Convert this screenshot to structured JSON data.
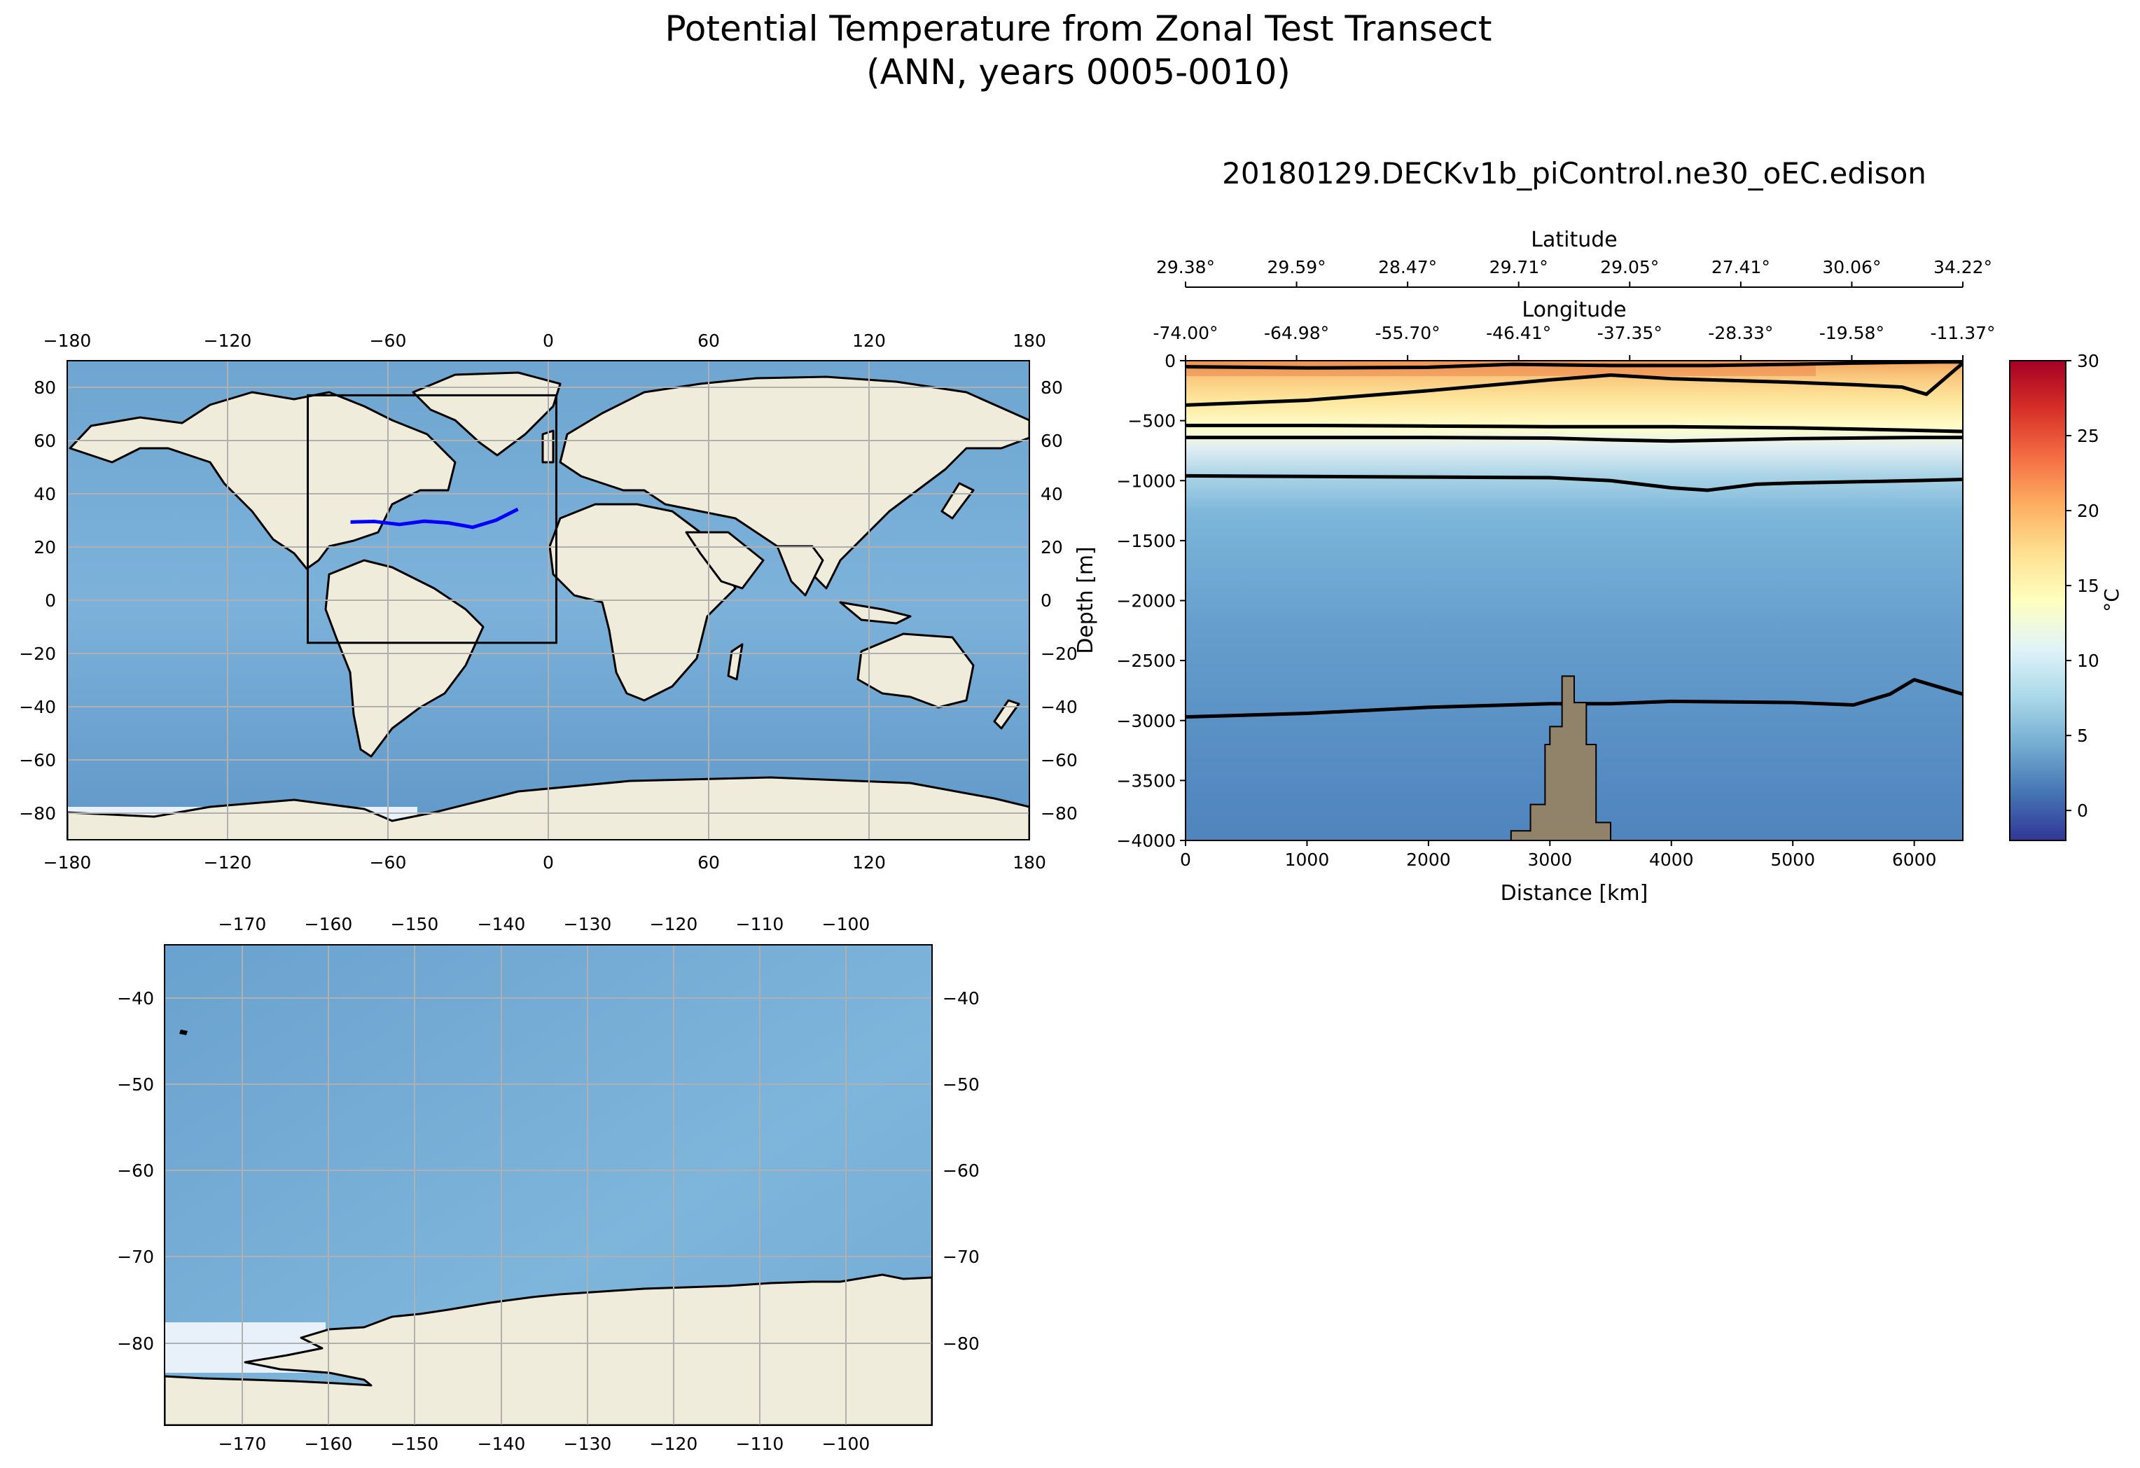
{
  "figure": {
    "title_line1": "Potential Temperature from Zonal Test Transect",
    "title_line2": "(ANN, years 0005-0010)",
    "colors": {
      "land": "#efecdc",
      "ocean_light": "#7fb2d8",
      "ocean_deep": "#4e86bd",
      "ice": "#e8f0fa",
      "grid": "#b0b0b0",
      "transect": "#0000ff",
      "bathymetry": "#91826a"
    }
  },
  "world_map": {
    "type": "map",
    "x_ticks": [
      "−180",
      "−120",
      "−60",
      "0",
      "60",
      "120",
      "180"
    ],
    "y_ticks": [
      "80",
      "60",
      "40",
      "20",
      "0",
      "−20",
      "−40",
      "−60",
      "−80"
    ],
    "grid": true,
    "transect_lonlat": [
      [
        -74,
        29.38
      ],
      [
        -64.98,
        29.59
      ],
      [
        -55.7,
        28.47
      ],
      [
        -46.41,
        29.71
      ],
      [
        -37.35,
        29.05
      ],
      [
        -28.33,
        27.41
      ],
      [
        -19.58,
        30.06
      ],
      [
        -11.37,
        34.22
      ]
    ],
    "inset_box": {
      "lon": [
        -90,
        3
      ],
      "lat": [
        -16,
        77
      ]
    }
  },
  "zoom_map": {
    "type": "map",
    "x_ticks": [
      "−170",
      "−160",
      "−150",
      "−140",
      "−130",
      "−120",
      "−110",
      "−100"
    ],
    "y_ticks": [
      "−40",
      "−50",
      "−60",
      "−70",
      "−80"
    ],
    "lon_range": [
      -178,
      -90
    ],
    "lat_range": [
      -90,
      -34
    ],
    "grid": true
  },
  "chart_data": {
    "type": "heatmap",
    "title": "20180129.DECKv1b_piControl.ne30_oEC.edison",
    "xlabel": "Distance [km]",
    "ylabel": "Depth [m]",
    "xlim": [
      0,
      6400
    ],
    "ylim": [
      -4000,
      0
    ],
    "x_ticks": [
      "0",
      "1000",
      "2000",
      "3000",
      "4000",
      "5000",
      "6000"
    ],
    "y_ticks": [
      "0",
      "−500",
      "−1000",
      "−1500",
      "−2000",
      "−2500",
      "−3000",
      "−3500",
      "−4000"
    ],
    "top_axis_1": {
      "label": "Latitude",
      "ticks": [
        "29.38°",
        "29.59°",
        "28.47°",
        "29.71°",
        "29.05°",
        "27.41°",
        "30.06°",
        "34.22°"
      ]
    },
    "top_axis_2": {
      "label": "Longitude",
      "ticks": [
        "-74.00°",
        "-64.98°",
        "-55.70°",
        "-46.41°",
        "-37.35°",
        "-28.33°",
        "-19.58°",
        "-11.37°"
      ]
    },
    "colorbar": {
      "label": "°C",
      "range": [
        -2,
        30
      ],
      "ticks": [
        "30",
        "25",
        "20",
        "15",
        "10",
        "5",
        "0"
      ],
      "colormap": "RdYlBu_r"
    },
    "contours": [
      {
        "x": [
          0,
          1000,
          2000,
          2700,
          3500,
          4300,
          5000,
          5500,
          5800,
          6200,
          6400
        ],
        "y": [
          -50,
          -60,
          -55,
          -30,
          -40,
          -40,
          -30,
          -20,
          -15,
          -10,
          -10
        ]
      },
      {
        "x": [
          0,
          1000,
          2000,
          3000,
          3500,
          4000,
          5000,
          5500,
          5900,
          6100,
          6400
        ],
        "y": [
          -370,
          -330,
          -250,
          -160,
          -120,
          -150,
          -180,
          -200,
          -220,
          -280,
          -20
        ]
      },
      {
        "x": [
          0,
          1000,
          2000,
          3000,
          4000,
          5000,
          6000,
          6400
        ],
        "y": [
          -540,
          -540,
          -545,
          -550,
          -550,
          -560,
          -580,
          -590
        ]
      },
      {
        "x": [
          0,
          1000,
          2000,
          3000,
          3500,
          4000,
          5000,
          6000,
          6400
        ],
        "y": [
          -640,
          -640,
          -640,
          -645,
          -660,
          -670,
          -650,
          -640,
          -640
        ]
      },
      {
        "x": [
          0,
          1000,
          2000,
          3000,
          3500,
          4000,
          4300,
          4700,
          5000,
          6000,
          6400
        ],
        "y": [
          -960,
          -965,
          -970,
          -975,
          -1000,
          -1060,
          -1080,
          -1030,
          -1020,
          -1000,
          -990
        ]
      },
      {
        "x": [
          0,
          1000,
          2000,
          3000,
          3500,
          4000,
          5000,
          5500,
          5800,
          6000,
          6200,
          6400
        ],
        "y": [
          -2970,
          -2940,
          -2890,
          -2860,
          -2860,
          -2840,
          -2850,
          -2870,
          -2780,
          -2660,
          -2720,
          -2780
        ]
      }
    ],
    "bathymetry": {
      "x": [
        2680,
        2680,
        2840,
        2840,
        2960,
        2960,
        3000,
        3000,
        3100,
        3100,
        3200,
        3200,
        3300,
        3300,
        3380,
        3380,
        3500,
        3500
      ],
      "y": [
        -4000,
        -3920,
        -3920,
        -3700,
        -3700,
        -3200,
        -3200,
        -3050,
        -3050,
        -2630,
        -2630,
        -2850,
        -2850,
        -3200,
        -3200,
        -3850,
        -3850,
        -4000
      ]
    },
    "temperature_profile": [
      {
        "depth": 0,
        "value": 23
      },
      {
        "depth": -200,
        "value": 19
      },
      {
        "depth": -500,
        "value": 15
      },
      {
        "depth": -700,
        "value": 11
      },
      {
        "depth": -1000,
        "value": 7
      },
      {
        "depth": -1500,
        "value": 5
      },
      {
        "depth": -3000,
        "value": 3
      },
      {
        "depth": -4000,
        "value": 2.5
      }
    ]
  }
}
